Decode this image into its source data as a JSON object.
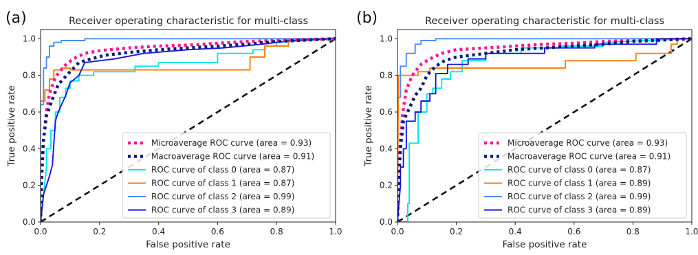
{
  "chart_data": [
    {
      "panel": "(a)",
      "type": "line",
      "title": "Receiver operating characteristic for multi-class",
      "xlabel": "False positive rate",
      "ylabel": "True positive rate",
      "xlim": [
        0,
        1
      ],
      "ylim": [
        0,
        1.05
      ],
      "xticks": [
        "0.0",
        "0.2",
        "0.4",
        "0.6",
        "0.8",
        "1.0"
      ],
      "yticks": [
        "0.0",
        "0.2",
        "0.4",
        "0.6",
        "0.8",
        "1.0"
      ],
      "grid": false,
      "legend_position": "lower right",
      "diagonal": {
        "x": [
          0,
          1
        ],
        "y": [
          0,
          1
        ],
        "color": "#111111",
        "style": "dashed"
      },
      "series": [
        {
          "name": "Microaverage ROC curve (area = 0.93)",
          "color": "#ff1493",
          "style": "dotted",
          "x": [
            0,
            0.003,
            0.01,
            0.02,
            0.03,
            0.05,
            0.08,
            0.11,
            0.15,
            0.2,
            0.3,
            0.4,
            0.5,
            0.6,
            0.7,
            0.8,
            1.0
          ],
          "y": [
            0,
            0.2,
            0.45,
            0.6,
            0.7,
            0.79,
            0.85,
            0.89,
            0.92,
            0.935,
            0.95,
            0.96,
            0.965,
            0.975,
            0.985,
            0.99,
            1.0
          ]
        },
        {
          "name": "Macroaverage ROC curve (area = 0.91)",
          "color": "#0a1a7a",
          "style": "dotted",
          "x": [
            0,
            0.003,
            0.01,
            0.02,
            0.04,
            0.06,
            0.1,
            0.13,
            0.17,
            0.22,
            0.3,
            0.4,
            0.5,
            0.6,
            0.7,
            0.8,
            1.0
          ],
          "y": [
            0,
            0.25,
            0.45,
            0.58,
            0.67,
            0.75,
            0.82,
            0.87,
            0.89,
            0.91,
            0.925,
            0.94,
            0.95,
            0.96,
            0.97,
            0.985,
            1.0
          ]
        },
        {
          "name": "ROC curve of class 0 (area = 0.87)",
          "color": "#00e5ee",
          "style": "solid",
          "x": [
            0,
            0.02,
            0.02,
            0.035,
            0.035,
            0.05,
            0.05,
            0.065,
            0.065,
            0.085,
            0.085,
            0.1,
            0.1,
            0.13,
            0.13,
            0.18,
            0.18,
            0.32,
            0.32,
            0.4,
            0.4,
            0.6,
            0.6,
            0.72,
            0.72,
            0.76,
            0.76,
            0.8,
            0.8,
            1.0
          ],
          "y": [
            0,
            0.3,
            0.4,
            0.4,
            0.5,
            0.5,
            0.6,
            0.6,
            0.68,
            0.68,
            0.73,
            0.73,
            0.77,
            0.77,
            0.8,
            0.8,
            0.82,
            0.82,
            0.85,
            0.85,
            0.87,
            0.87,
            0.92,
            0.92,
            0.94,
            0.94,
            0.96,
            0.96,
            0.98,
            1.0
          ]
        },
        {
          "name": "ROC curve of class 1 (area = 0.87)",
          "color": "#ff7f0e",
          "style": "solid",
          "x": [
            0,
            0,
            0.015,
            0.015,
            0.03,
            0.03,
            0.045,
            0.045,
            0.07,
            0.07,
            0.1,
            0.1,
            0.71,
            0.71,
            0.76,
            0.76,
            0.84,
            0.84,
            1.0
          ],
          "y": [
            0,
            0.66,
            0.66,
            0.72,
            0.72,
            0.78,
            0.78,
            0.83,
            0.83,
            0.84,
            0.84,
            0.83,
            0.83,
            0.9,
            0.9,
            0.96,
            0.96,
            1.0,
            1.0
          ]
        },
        {
          "name": "ROC curve of class 2 (area = 0.99)",
          "color": "#4c8bf5",
          "style": "solid",
          "x": [
            0,
            0,
            0.01,
            0.01,
            0.02,
            0.02,
            0.03,
            0.03,
            0.045,
            0.045,
            0.07,
            0.07,
            0.15,
            0.15,
            1.0
          ],
          "y": [
            0,
            0.64,
            0.64,
            0.84,
            0.84,
            0.9,
            0.9,
            0.96,
            0.96,
            0.98,
            0.98,
            0.99,
            0.99,
            1.0,
            1.0
          ]
        },
        {
          "name": "ROC curve of class 3 (area = 0.89)",
          "color": "#1414e6",
          "style": "solid",
          "x": [
            0,
            0.01,
            0.01,
            0.03,
            0.03,
            0.04,
            0.04,
            0.05,
            0.05,
            0.06,
            0.06,
            0.085,
            0.085,
            0.1,
            0.1,
            0.13,
            0.13,
            0.15,
            0.15,
            0.25,
            0.25,
            0.35,
            0.35,
            0.5,
            0.5,
            0.62,
            0.62,
            0.75,
            0.75,
            0.85,
            0.85,
            1.0
          ],
          "y": [
            0,
            0.15,
            0.15,
            0.25,
            0.25,
            0.31,
            0.31,
            0.55,
            0.55,
            0.6,
            0.6,
            0.69,
            0.69,
            0.76,
            0.76,
            0.8,
            0.8,
            0.87,
            0.87,
            0.89,
            0.89,
            0.92,
            0.92,
            0.94,
            0.94,
            0.95,
            0.95,
            0.97,
            0.97,
            0.99,
            0.99,
            1.0
          ]
        }
      ]
    },
    {
      "panel": "(b)",
      "type": "line",
      "title": "Receiver operating characteristic for multi-class",
      "xlabel": "False positive rate",
      "ylabel": "True positive rate",
      "xlim": [
        0,
        1
      ],
      "ylim": [
        0,
        1.05
      ],
      "xticks": [
        "0.0",
        "0.2",
        "0.4",
        "0.6",
        "0.8",
        "1.0"
      ],
      "yticks": [
        "0.0",
        "0.2",
        "0.4",
        "0.6",
        "0.8",
        "1.0"
      ],
      "grid": false,
      "legend_position": "lower right",
      "diagonal": {
        "x": [
          0,
          1
        ],
        "y": [
          0,
          1
        ],
        "color": "#111111",
        "style": "dashed"
      },
      "series": [
        {
          "name": "Microaverage ROC curve (area = 0.93)",
          "color": "#ff1493",
          "style": "dotted",
          "x": [
            0,
            0.003,
            0.01,
            0.02,
            0.03,
            0.05,
            0.08,
            0.11,
            0.15,
            0.2,
            0.3,
            0.4,
            0.5,
            0.6,
            0.7,
            0.8,
            1.0
          ],
          "y": [
            0,
            0.2,
            0.45,
            0.62,
            0.72,
            0.8,
            0.86,
            0.89,
            0.92,
            0.94,
            0.95,
            0.96,
            0.97,
            0.975,
            0.985,
            0.99,
            1.0
          ]
        },
        {
          "name": "Macroaverage ROC curve (area = 0.91)",
          "color": "#0a1a7a",
          "style": "dotted",
          "x": [
            0,
            0.003,
            0.01,
            0.02,
            0.04,
            0.06,
            0.08,
            0.1,
            0.13,
            0.16,
            0.2,
            0.3,
            0.4,
            0.5,
            0.6,
            0.7,
            0.8,
            1.0
          ],
          "y": [
            0,
            0.2,
            0.4,
            0.55,
            0.62,
            0.69,
            0.73,
            0.8,
            0.85,
            0.88,
            0.9,
            0.92,
            0.94,
            0.95,
            0.96,
            0.97,
            0.985,
            1.0
          ]
        },
        {
          "name": "ROC curve of class 0 (area = 0.87)",
          "color": "#00e5ee",
          "style": "solid",
          "x": [
            0,
            0.035,
            0.035,
            0.04,
            0.04,
            0.07,
            0.07,
            0.1,
            0.1,
            0.12,
            0.12,
            0.15,
            0.15,
            0.18,
            0.18,
            0.22,
            0.22,
            0.3,
            0.3,
            0.42,
            0.42,
            0.55,
            0.55,
            0.7,
            0.7,
            1.0
          ],
          "y": [
            0,
            0,
            0.1,
            0.1,
            0.43,
            0.43,
            0.6,
            0.6,
            0.7,
            0.7,
            0.73,
            0.73,
            0.78,
            0.78,
            0.82,
            0.82,
            0.88,
            0.88,
            0.92,
            0.92,
            0.95,
            0.95,
            0.96,
            0.96,
            0.98,
            1.0
          ]
        },
        {
          "name": "ROC curve of class 1 (area = 0.89)",
          "color": "#ff7f0e",
          "style": "solid",
          "x": [
            0,
            0.003,
            0.003,
            0.07,
            0.07,
            0.11,
            0.11,
            0.57,
            0.57,
            0.81,
            0.81,
            0.93,
            0.93,
            0.95,
            0.95,
            1.0
          ],
          "y": [
            0,
            0.77,
            0.8,
            0.8,
            0.82,
            0.82,
            0.84,
            0.84,
            0.88,
            0.88,
            0.92,
            0.92,
            0.97,
            0.97,
            1.0,
            1.0
          ]
        },
        {
          "name": "ROC curve of class 2 (area = 0.99)",
          "color": "#4c8bf5",
          "style": "solid",
          "x": [
            0,
            0,
            0.01,
            0.01,
            0.03,
            0.03,
            0.06,
            0.06,
            0.08,
            0.08,
            0.13,
            0.13,
            1.0
          ],
          "y": [
            0,
            0.68,
            0.68,
            0.85,
            0.85,
            0.92,
            0.92,
            0.97,
            0.97,
            0.99,
            0.99,
            1.0,
            1.0
          ]
        },
        {
          "name": "ROC curve of class 3 (area = 0.89)",
          "color": "#1414e6",
          "style": "solid",
          "x": [
            0,
            0.005,
            0.01,
            0.01,
            0.02,
            0.02,
            0.03,
            0.03,
            0.06,
            0.06,
            0.08,
            0.08,
            0.11,
            0.11,
            0.13,
            0.13,
            0.17,
            0.17,
            0.24,
            0.24,
            0.3,
            0.3,
            0.5,
            0.5,
            0.67,
            0.67,
            0.88,
            0.88,
            1.0
          ],
          "y": [
            0,
            0.1,
            0.2,
            0.3,
            0.3,
            0.4,
            0.4,
            0.55,
            0.55,
            0.6,
            0.6,
            0.66,
            0.66,
            0.7,
            0.7,
            0.81,
            0.81,
            0.86,
            0.86,
            0.89,
            0.89,
            0.92,
            0.92,
            0.95,
            0.95,
            0.97,
            0.97,
            1.0,
            1.0
          ]
        }
      ]
    }
  ]
}
